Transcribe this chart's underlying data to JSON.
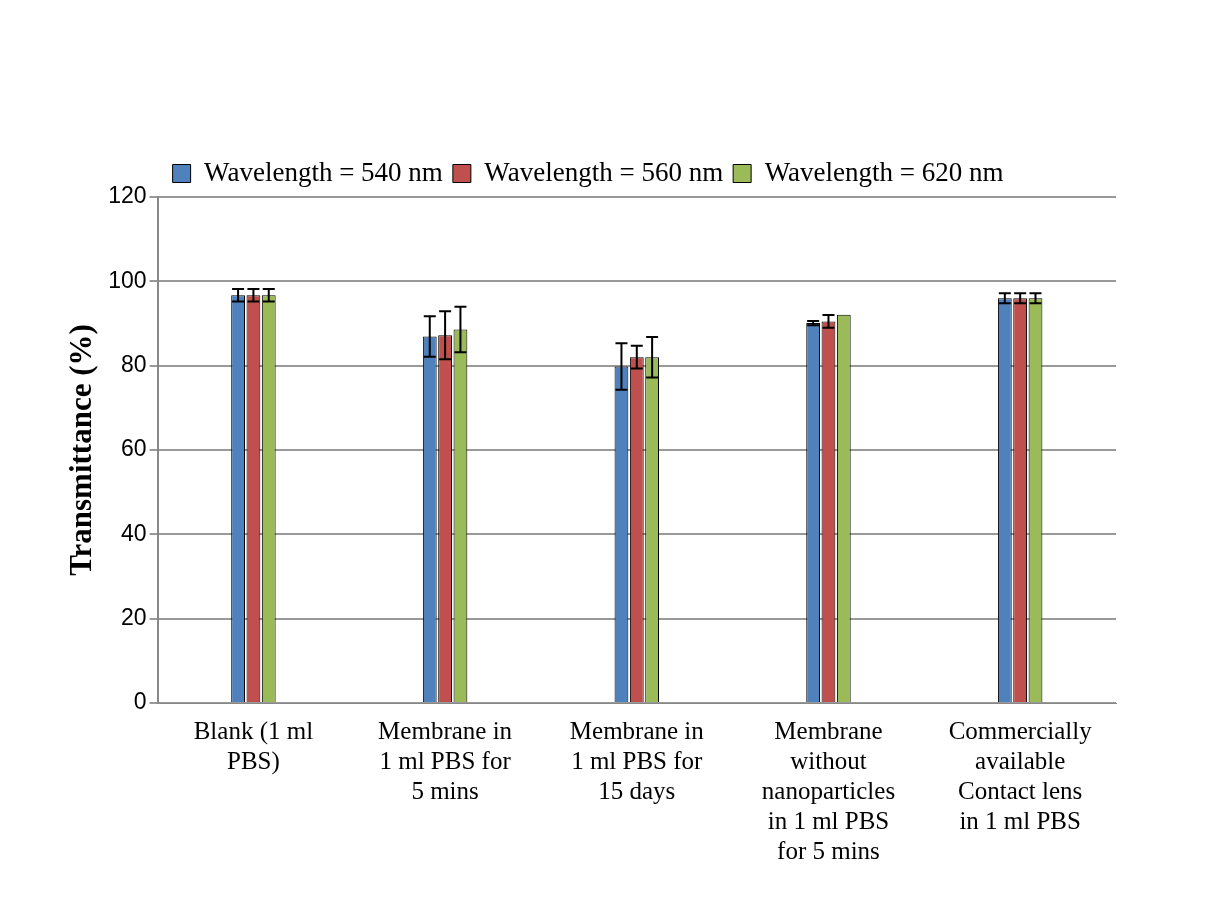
{
  "chart_data": {
    "type": "bar",
    "ylabel": "Transmittance (%)",
    "categories": [
      "Blank (1 ml PBS)",
      "Membrane in 1 ml PBS for 5 mins",
      "Membrane in 1 ml PBS for 15 days",
      "Membrane without nanoparticles in 1 ml PBS for 5 mins",
      "Commercially available Contact lens in 1 ml PBS"
    ],
    "series": [
      {
        "name": "Wavelength = 540 nm",
        "color": "#4f81bd",
        "values": [
          96.7,
          86.9,
          79.8,
          90.1,
          96.0
        ],
        "errors": [
          1.5,
          4.8,
          5.5,
          0.5,
          1.2
        ]
      },
      {
        "name": "Wavelength = 560 nm",
        "color": "#c0504d",
        "values": [
          96.7,
          87.2,
          82.0,
          90.5,
          96.0
        ],
        "errors": [
          1.5,
          5.7,
          2.7,
          1.5,
          1.2
        ]
      },
      {
        "name": "Wavelength = 620 nm",
        "color": "#9bbb59",
        "values": [
          96.7,
          88.6,
          82.0,
          92.1,
          96.0
        ],
        "errors": [
          1.5,
          5.4,
          4.8,
          null,
          1.2
        ]
      }
    ],
    "ylim": [
      0,
      120
    ],
    "yticks": [
      0,
      20,
      40,
      60,
      80,
      100,
      120
    ],
    "grid": "y",
    "legend": "top"
  }
}
